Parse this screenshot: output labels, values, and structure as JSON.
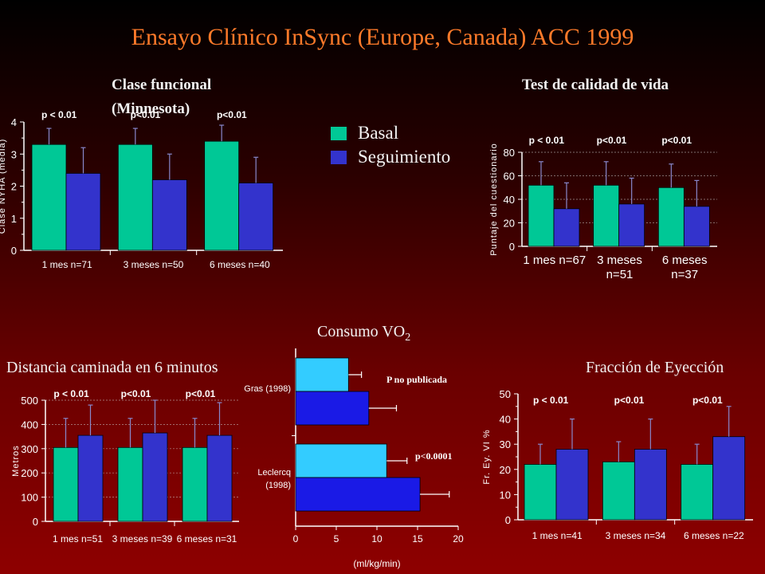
{
  "title": "Ensayo Clínico InSync (Europe, Canada) ACC 1999",
  "colors": {
    "basal": "#00c896",
    "seguimiento": "#3333cc",
    "vo2_basal": "#33ccff",
    "vo2_seg": "#1a1ae6",
    "title": "#ff7a2a"
  },
  "legend": {
    "basal": "Basal",
    "seguimiento": "Seguimiento"
  },
  "chart_data": [
    {
      "id": "clase-funcional",
      "type": "bar",
      "title_line1": "Clase funcional",
      "title_line2": "(Minnesota)",
      "ylabel": "Clase NYHA (media)",
      "categories": [
        "1 mes n=71",
        "3 meses n=50",
        "6 meses n=40"
      ],
      "series": [
        {
          "name": "Basal",
          "values": [
            3.3,
            3.3,
            3.4
          ],
          "errors": [
            0.5,
            0.5,
            0.5
          ]
        },
        {
          "name": "Seguimiento",
          "values": [
            2.4,
            2.2,
            2.1
          ],
          "errors": [
            0.8,
            0.8,
            0.8
          ]
        }
      ],
      "pvalues": [
        "p < 0.01",
        "p<0.01",
        "p<0.01"
      ],
      "ylim": [
        0,
        4
      ],
      "yticks": [
        0,
        1,
        2,
        3,
        4
      ]
    },
    {
      "id": "calidad-vida",
      "type": "bar",
      "title": "Test de calidad de vida",
      "ylabel": "Puntaje del cuestionario",
      "categories": [
        [
          "1 mes n=67"
        ],
        [
          "3 meses",
          "n=51"
        ],
        [
          "6 meses",
          "n=37"
        ]
      ],
      "series": [
        {
          "name": "Basal",
          "values": [
            52,
            52,
            50
          ],
          "errors": [
            20,
            20,
            20
          ]
        },
        {
          "name": "Seguimiento",
          "values": [
            32,
            36,
            34
          ],
          "errors": [
            22,
            22,
            22
          ]
        }
      ],
      "pvalues": [
        "p < 0.01",
        "p<0.01",
        "p<0.01"
      ],
      "ylim": [
        0,
        80
      ],
      "yticks": [
        0,
        20,
        40,
        60,
        80
      ]
    },
    {
      "id": "distancia",
      "type": "bar",
      "title": "Distancia caminada en 6 minutos",
      "ylabel": "Metros",
      "categories": [
        "1 mes n=51",
        "3 meses n=39",
        "6 meses n=31"
      ],
      "series": [
        {
          "name": "Basal",
          "values": [
            305,
            305,
            305
          ],
          "errors": [
            120,
            120,
            120
          ]
        },
        {
          "name": "Seguimiento",
          "values": [
            355,
            365,
            355
          ],
          "errors": [
            125,
            135,
            135
          ]
        }
      ],
      "pvalues": [
        "p < 0.01",
        "p<0.01",
        "p<0.01"
      ],
      "ylim": [
        0,
        500
      ],
      "yticks": [
        0,
        100,
        200,
        300,
        400,
        500
      ]
    },
    {
      "id": "consumo-vo2",
      "type": "bar",
      "orientation": "horizontal",
      "title": "Consumo VO",
      "title_sub": "2",
      "xlabel": "(ml/kg/min)",
      "categories": [
        [
          "Gras (1998)"
        ],
        [
          "Leclercq",
          "(1998)"
        ]
      ],
      "series": [
        {
          "name": "Basal",
          "values": [
            6.5,
            11.2
          ],
          "errors": [
            1.6,
            2.5
          ]
        },
        {
          "name": "Seguimiento",
          "values": [
            9.0,
            15.3
          ],
          "errors": [
            3.4,
            3.6
          ]
        }
      ],
      "annotations": [
        "P no publicada",
        "p<0.0001"
      ],
      "xlim": [
        0,
        20
      ],
      "xticks": [
        0,
        5,
        10,
        15,
        20
      ]
    },
    {
      "id": "fraccion-eyeccion",
      "type": "bar",
      "title": "Fracción de Eyección",
      "ylabel": "Fr. Ey. VI %",
      "categories": [
        "1 mes n=41",
        "3 meses n=34",
        "6 meses n=22"
      ],
      "series": [
        {
          "name": "Basal",
          "values": [
            22,
            23,
            22
          ],
          "errors": [
            8,
            8,
            8
          ]
        },
        {
          "name": "Seguimiento",
          "values": [
            28,
            28,
            33
          ],
          "errors": [
            12,
            12,
            12
          ]
        }
      ],
      "pvalues": [
        "p < 0.01",
        "p<0.01",
        "p<0.01"
      ],
      "ylim": [
        0,
        50
      ],
      "yticks": [
        0,
        10,
        20,
        30,
        40,
        50
      ]
    }
  ]
}
